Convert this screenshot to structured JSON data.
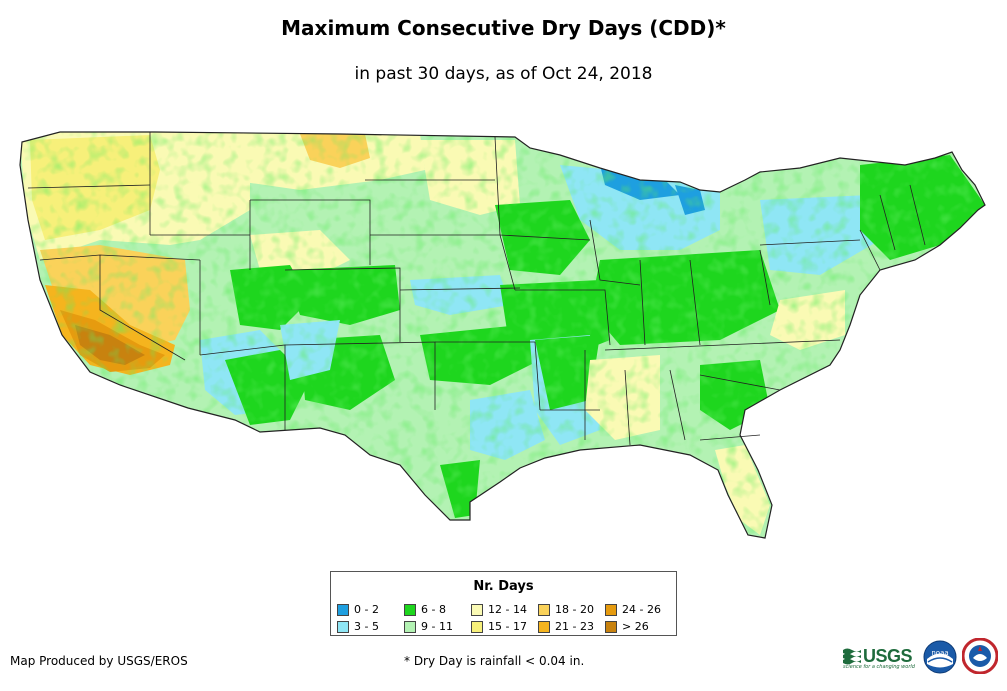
{
  "title": "Maximum Consecutive Dry Days (CDD)*",
  "subtitle": "in past 30 days, as of Oct 24, 2018",
  "legend": {
    "title": "Nr. Days",
    "items": [
      {
        "label": "0 - 2",
        "color": "#1e9fe0"
      },
      {
        "label": "3 - 5",
        "color": "#8fe6f5"
      },
      {
        "label": "6 - 8",
        "color": "#1ed61e"
      },
      {
        "label": "9 - 11",
        "color": "#b3f2b3"
      },
      {
        "label": "12 - 14",
        "color": "#fafab4"
      },
      {
        "label": "15 - 17",
        "color": "#f7f07a"
      },
      {
        "label": "18 - 20",
        "color": "#fad25a"
      },
      {
        "label": "21 - 23",
        "color": "#f5b41e"
      },
      {
        "label": "24 - 26",
        "color": "#e69b0f"
      },
      {
        "label": "> 26",
        "color": "#c8820f"
      }
    ]
  },
  "footer": {
    "credit": "Map Produced by USGS/EROS",
    "note": "* Dry Day is rainfall < 0.04 in."
  },
  "logos": {
    "usgs_text": "USGS",
    "usgs_tagline": "science for a changing world",
    "noaa_text": "noaa"
  },
  "colors": {
    "border": "#222222",
    "land_base": "#b3f2b3"
  }
}
